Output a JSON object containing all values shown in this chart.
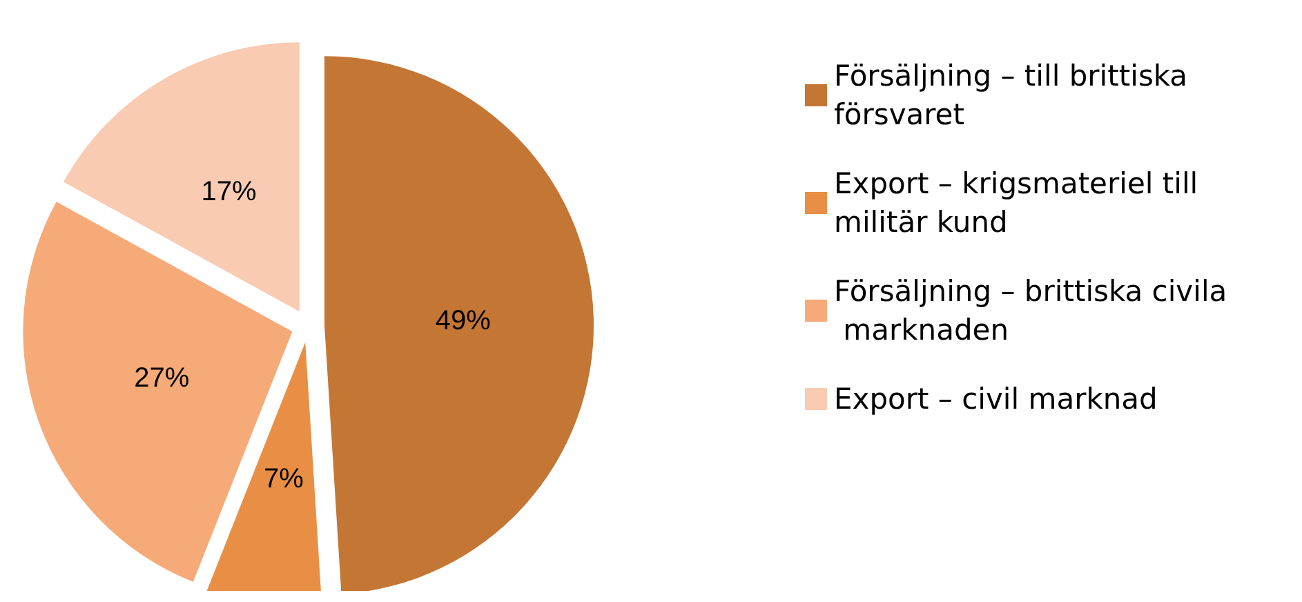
{
  "chart_data": {
    "type": "pie",
    "categories": [
      "Försäljning – till brittiska försvaret",
      "Export – krigsmateriel till militär kund",
      "Försäljning – brittiska civila marknaden",
      "Export – civil marknad"
    ],
    "values": [
      49,
      7,
      27,
      17
    ],
    "colors": [
      "#c47634",
      "#e88f45",
      "#f6aa78",
      "#f8cbb2"
    ],
    "value_labels": [
      "49%",
      "7%",
      "27%",
      "17%"
    ],
    "legend": "right"
  }
}
